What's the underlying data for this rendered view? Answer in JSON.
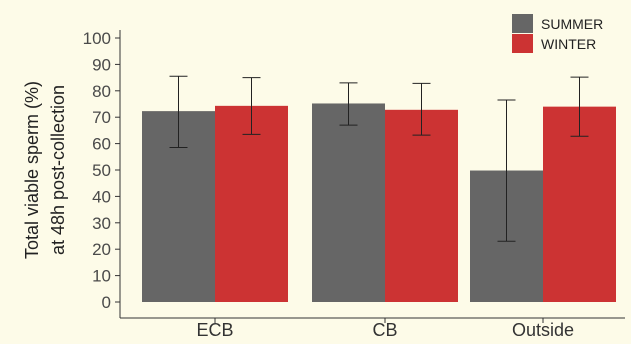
{
  "chart_data": {
    "type": "bar",
    "categories": [
      "ECB",
      "CB",
      "Outside"
    ],
    "series": [
      {
        "name": "SUMMER",
        "color": "#666666",
        "values": [
          72.3,
          75.2,
          49.8
        ],
        "error_low": [
          58.5,
          67.0,
          23.0
        ],
        "error_high": [
          85.5,
          83.0,
          76.5
        ]
      },
      {
        "name": "WINTER",
        "color": "#cc3333",
        "values": [
          74.3,
          72.8,
          74.0
        ],
        "error_low": [
          63.5,
          63.2,
          62.8
        ],
        "error_high": [
          85.0,
          82.8,
          85.2
        ]
      }
    ],
    "ylabel_line1": "Total viable sperm (%)",
    "ylabel_line2": "at 48h post-collection",
    "xlabel": "",
    "ylim": [
      0,
      100
    ],
    "yticks": [
      0,
      10,
      20,
      30,
      40,
      50,
      60,
      70,
      80,
      90,
      100
    ],
    "legend_position": "top-right",
    "grid": false
  }
}
